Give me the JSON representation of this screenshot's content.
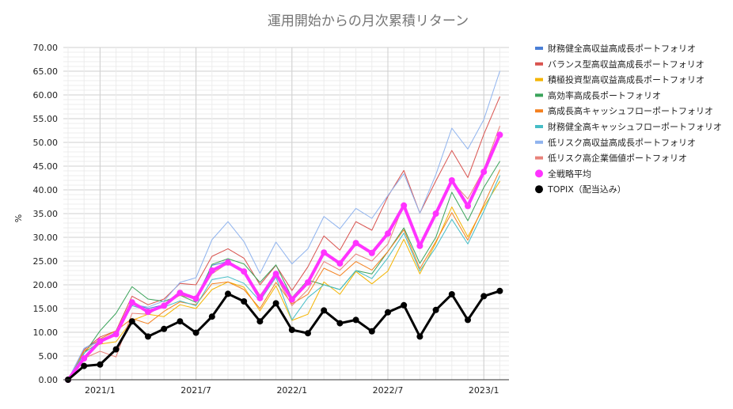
{
  "chart_data": {
    "type": "line",
    "title": "運用開始からの月次累積リターン",
    "ylabel": "%",
    "xlabel": "",
    "ylim": [
      0,
      70
    ],
    "y_ticks": [
      "0.00",
      "5.00",
      "10.00",
      "15.00",
      "20.00",
      "25.00",
      "30.00",
      "35.00",
      "40.00",
      "45.00",
      "50.00",
      "55.00",
      "60.00",
      "65.00",
      "70.00"
    ],
    "x_ticks": [
      {
        "label": "2021/1",
        "index": 2
      },
      {
        "label": "2021/7",
        "index": 8
      },
      {
        "label": "2022/1",
        "index": 14
      },
      {
        "label": "2022/7",
        "index": 20
      },
      {
        "label": "2023/1",
        "index": 26
      }
    ],
    "grid": true,
    "legend_position": "right",
    "series": [
      {
        "name": "財務健全高収益高成長ポートフォリオ",
        "color": "#4a7fd6",
        "width": 1,
        "marker": false,
        "values": [
          0,
          6.6,
          8.4,
          9.8,
          16.2,
          15.0,
          15.8,
          18.6,
          17.2,
          24.1,
          24.9,
          23.1,
          17.0,
          22.4,
          17.2,
          20.8,
          26.9,
          24.6,
          28.9,
          26.8,
          31.0,
          36.9,
          28.2,
          35.1,
          42.1,
          36.8,
          43.9,
          51.7
        ]
      },
      {
        "name": "バランス型高収益高成長ポートフォリオ",
        "color": "#d9534f",
        "width": 1,
        "marker": false,
        "values": [
          0,
          6.3,
          9.0,
          10.3,
          17.6,
          15.8,
          17.0,
          20.3,
          20.0,
          26.0,
          27.6,
          25.6,
          20.0,
          24.1,
          18.8,
          23.8,
          30.3,
          27.3,
          33.3,
          31.5,
          38.6,
          44.1,
          35.1,
          41.9,
          48.3,
          42.6,
          51.7,
          59.6
        ]
      },
      {
        "name": "積極投資型高収益高成長ポートフォリオ",
        "color": "#f4b400",
        "width": 1,
        "marker": false,
        "values": [
          0,
          6.0,
          7.5,
          8.0,
          12.5,
          13.8,
          13.3,
          15.8,
          15.0,
          19.0,
          20.6,
          19.5,
          14.5,
          19.8,
          12.5,
          13.8,
          20.6,
          18.0,
          22.8,
          20.2,
          22.9,
          29.6,
          22.3,
          28.8,
          36.4,
          30.1,
          36.4,
          41.8
        ]
      },
      {
        "name": "高効率高成長ポートフォリオ",
        "color": "#3aa35a",
        "width": 1,
        "marker": false,
        "values": [
          0,
          5.5,
          10.3,
          14.0,
          19.6,
          17.0,
          16.5,
          17.8,
          16.3,
          24.3,
          25.5,
          24.4,
          20.5,
          24.2,
          17.3,
          21.0,
          20.0,
          19.0,
          23.0,
          22.3,
          27.0,
          32.0,
          24.5,
          30.0,
          39.5,
          33.5,
          40.5,
          46.0
        ]
      },
      {
        "name": "高成長高キャッシュフローポートフォリオ",
        "color": "#f4801f",
        "width": 1,
        "marker": false,
        "values": [
          0,
          6.0,
          8.6,
          10.3,
          12.9,
          11.8,
          14.4,
          16.4,
          15.8,
          20.2,
          20.6,
          19.0,
          15.0,
          20.5,
          16.0,
          18.0,
          23.5,
          21.9,
          24.9,
          23.1,
          27.0,
          31.6,
          23.4,
          29.1,
          35.2,
          29.4,
          36.9,
          44.2
        ]
      },
      {
        "name": "財務健全高キャッシュフローポートフォリオ",
        "color": "#46bdc6",
        "width": 1,
        "marker": false,
        "values": [
          0,
          5.6,
          8.1,
          9.5,
          15.6,
          14.6,
          15.3,
          16.6,
          15.6,
          21.1,
          21.7,
          20.3,
          16.6,
          21.6,
          12.6,
          17.3,
          20.0,
          19.0,
          23.0,
          21.3,
          25.7,
          30.9,
          22.9,
          27.9,
          33.8,
          28.6,
          35.5,
          43.0
        ]
      },
      {
        "name": "低リスク高収益高成長ポートフォリオ",
        "color": "#8fb3ee",
        "width": 1,
        "marker": false,
        "values": [
          0,
          6.6,
          8.1,
          10.1,
          15.9,
          15.3,
          16.6,
          20.5,
          21.5,
          29.5,
          33.3,
          29.1,
          22.4,
          29.0,
          24.4,
          27.6,
          34.4,
          31.8,
          36.1,
          34.0,
          38.8,
          43.4,
          35.1,
          43.2,
          53.0,
          48.6,
          54.8,
          65.0
        ]
      },
      {
        "name": "低リスク高企業価値ポートフォリオ",
        "color": "#e8827a",
        "width": 1,
        "marker": false,
        "values": [
          0,
          4.5,
          6.0,
          4.8,
          14.0,
          13.8,
          15.8,
          17.8,
          17.0,
          22.3,
          24.6,
          23.0,
          17.8,
          21.9,
          15.6,
          19.0,
          24.9,
          23.1,
          26.5,
          25.0,
          28.6,
          36.9,
          28.5,
          34.9,
          41.8,
          38.1,
          44.3,
          53.4
        ]
      },
      {
        "name": "全戦略平均",
        "color": "#ff33ff",
        "width": 4,
        "marker": true,
        "markerRadius": 4,
        "values": [
          0,
          4.5,
          8.1,
          9.6,
          16.3,
          14.3,
          15.6,
          18.3,
          17.1,
          23.0,
          24.7,
          22.8,
          17.2,
          22.3,
          16.9,
          20.5,
          26.8,
          24.5,
          28.8,
          26.7,
          30.8,
          36.7,
          28.2,
          35.0,
          42.0,
          36.6,
          43.8,
          51.6
        ]
      },
      {
        "name": "TOPIX（配当込み）",
        "color": "#000000",
        "width": 3,
        "marker": true,
        "markerRadius": 4,
        "values": [
          0,
          2.9,
          3.2,
          6.4,
          12.3,
          9.1,
          10.7,
          12.3,
          9.9,
          13.3,
          18.1,
          16.5,
          12.3,
          16.1,
          10.5,
          9.8,
          14.6,
          11.9,
          12.6,
          10.2,
          14.2,
          15.7,
          9.1,
          14.7,
          18.0,
          12.6,
          17.6,
          18.7
        ]
      }
    ]
  }
}
